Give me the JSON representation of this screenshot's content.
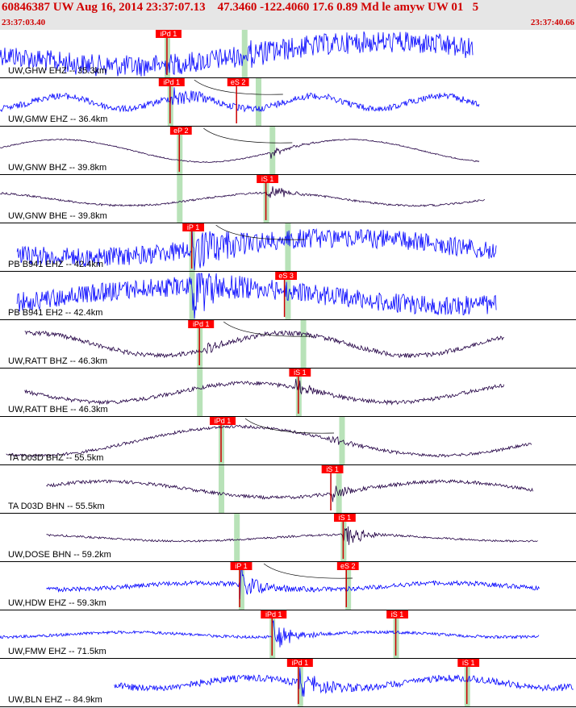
{
  "header": {
    "title": "60846387 UW Aug 16, 2014 23:37:07.13    47.3460 -122.4060 17.6 0.89 Md le amyw UW 01   5",
    "time_start": "23:37:03.40",
    "time_end": "23:37:40.66"
  },
  "colors": {
    "header_bg": "#e6e6e6",
    "header_text": "#d00000",
    "pick_box": "#ff0000",
    "pick_line": "#cc0000",
    "window": "#b8e2b8",
    "wave_ehz": "#0000ff",
    "wave_bh": "#220044",
    "grid": "#000000"
  },
  "time_range": {
    "start": 3.4,
    "end": 40.66
  },
  "traces": [
    {
      "label": "UW,GHW EHZ -- 35.3km",
      "color": "#0000ff",
      "wave_start": 3.4,
      "wave_end": 34.0,
      "amp": 15,
      "noise": 0.9,
      "freq": 0.2,
      "onset": 19.4,
      "arr_amp": 0.3,
      "picks": [
        {
          "label": "iPd 1",
          "t": 14.2
        }
      ],
      "windows": [
        {
          "t": 14.2,
          "w": 0.5
        },
        {
          "t": 19.2,
          "w": 0.5
        }
      ],
      "curve": false
    },
    {
      "label": "UW,GMW EHZ -- 36.4km",
      "color": "#0000ff",
      "wave_start": 3.4,
      "wave_end": 34.4,
      "amp": 8,
      "noise": 0.5,
      "freq": 0.8,
      "onset": 14.4,
      "arr_amp": 2.2,
      "picks": [
        {
          "label": "iPd 1",
          "t": 14.4
        },
        {
          "label": "eS 2",
          "t": 18.7
        }
      ],
      "windows": [
        {
          "t": 14.4,
          "w": 0.5
        },
        {
          "t": 20.1,
          "w": 0.5
        }
      ],
      "curve": true
    },
    {
      "label": "UW,GNW BHZ -- 39.8km",
      "color": "#220044",
      "wave_start": 3.4,
      "wave_end": 34.4,
      "amp": 14,
      "noise": 0.05,
      "freq": 0.35,
      "onset": 20.9,
      "arr_amp": 1.8,
      "picks": [
        {
          "label": "eP 2",
          "t": 15.0
        }
      ],
      "windows": [
        {
          "t": 15.0,
          "w": 0.5
        },
        {
          "t": 21.0,
          "w": 0.5
        }
      ],
      "curve": true
    },
    {
      "label": "UW,GNW BHE -- 39.8km",
      "color": "#220044",
      "wave_start": 3.4,
      "wave_end": 34.8,
      "amp": 8,
      "noise": 0.15,
      "freq": 0.35,
      "onset": 20.6,
      "arr_amp": 2.5,
      "picks": [
        {
          "label": "iS 1",
          "t": 20.6
        }
      ],
      "windows": [
        {
          "t": 15.0,
          "w": 0.5
        },
        {
          "t": 20.6,
          "w": 0.5
        }
      ],
      "curve": false
    },
    {
      "label": "PB B941 EHZ -- 42.4km",
      "color": "#0000ff",
      "wave_start": 4.5,
      "wave_end": 35.5,
      "amp": 12,
      "noise": 1.0,
      "freq": 0.2,
      "onset": 15.8,
      "arr_amp": 2.5,
      "picks": [
        {
          "label": "iP 1",
          "t": 15.8
        }
      ],
      "windows": [
        {
          "t": 15.8,
          "w": 0.5
        },
        {
          "t": 22.0,
          "w": 0.5
        }
      ],
      "curve": true
    },
    {
      "label": "PB B941 EH2 -- 42.4km",
      "color": "#0000ff",
      "wave_start": 4.5,
      "wave_end": 35.5,
      "amp": 12,
      "noise": 1.0,
      "freq": 0.2,
      "onset": 15.8,
      "arr_amp": 2.5,
      "picks": [
        {
          "label": "eS 3",
          "t": 21.8
        }
      ],
      "windows": [
        {
          "t": 15.8,
          "w": 0.5
        },
        {
          "t": 22.0,
          "w": 0.5
        }
      ],
      "curve": false
    },
    {
      "label": "UW,RATT BHZ -- 46.3km",
      "color": "#220044",
      "wave_start": 5.0,
      "wave_end": 36.0,
      "amp": 14,
      "noise": 0.2,
      "freq": 0.4,
      "onset": 16.4,
      "arr_amp": 1.3,
      "picks": [
        {
          "label": "iPd 1",
          "t": 16.3
        }
      ],
      "windows": [
        {
          "t": 16.3,
          "w": 0.5
        },
        {
          "t": 23.0,
          "w": 0.5
        }
      ],
      "curve": true
    },
    {
      "label": "UW,RATT BHE -- 46.3km",
      "color": "#220044",
      "wave_start": 5.0,
      "wave_end": 36.0,
      "amp": 12,
      "noise": 0.2,
      "freq": 0.35,
      "onset": 22.5,
      "arr_amp": 1.6,
      "picks": [
        {
          "label": "iS 1",
          "t": 22.7
        }
      ],
      "windows": [
        {
          "t": 16.3,
          "w": 0.5
        },
        {
          "t": 22.7,
          "w": 0.5
        }
      ],
      "curve": false
    },
    {
      "label": "TA D03D BHZ -- 55.5km",
      "color": "#220044",
      "wave_start": 3.8,
      "wave_end": 37.8,
      "amp": 18,
      "noise": 0.1,
      "freq": 0.25,
      "onset": 24.6,
      "arr_amp": 1.2,
      "picks": [
        {
          "label": "iPd 1",
          "t": 17.7
        }
      ],
      "windows": [
        {
          "t": 17.7,
          "w": 0.5
        },
        {
          "t": 25.5,
          "w": 0.5
        }
      ],
      "curve": true
    },
    {
      "label": "TA D03D BHN -- 55.5km",
      "color": "#220044",
      "wave_start": 6.4,
      "wave_end": 37.9,
      "amp": 10,
      "noise": 0.2,
      "freq": 0.3,
      "onset": 24.9,
      "arr_amp": 2.0,
      "picks": [
        {
          "label": "iS 1",
          "t": 24.8
        }
      ],
      "windows": [
        {
          "t": 17.7,
          "w": 0.5
        },
        {
          "t": 25.3,
          "w": 0.5
        }
      ],
      "curve": false
    },
    {
      "label": "UW,DOSE BHN -- 59.2km",
      "color": "#220044",
      "wave_start": 6.4,
      "wave_end": 38.2,
      "amp": 4,
      "noise": 0.3,
      "freq": 0.3,
      "onset": 25.6,
      "arr_amp": 4.0,
      "picks": [
        {
          "label": "iS 1",
          "t": 25.6
        }
      ],
      "windows": [
        {
          "t": 18.7,
          "w": 0.5
        },
        {
          "t": 25.6,
          "w": 0.5
        }
      ],
      "curve": false
    },
    {
      "label": "UW,HDW EHZ -- 59.3km",
      "color": "#0000ff",
      "wave_start": 6.4,
      "wave_end": 38.3,
      "amp": 4,
      "noise": 0.7,
      "freq": 0.4,
      "onset": 18.9,
      "arr_amp": 4.0,
      "picks": [
        {
          "label": "iP 1",
          "t": 18.9
        },
        {
          "label": "eS 2",
          "t": 25.8
        }
      ],
      "windows": [
        {
          "t": 19.0,
          "w": 0.5
        },
        {
          "t": 25.9,
          "w": 0.5
        }
      ],
      "curve": true
    },
    {
      "label": "UW,FMW EHZ -- 71.5km",
      "color": "#0000ff",
      "wave_start": 3.4,
      "wave_end": 38.3,
      "amp": 3,
      "noise": 0.6,
      "freq": 0.4,
      "onset": 21.0,
      "arr_amp": 4.0,
      "picks": [
        {
          "label": "iPd 1",
          "t": 21.0
        },
        {
          "label": "iS 1",
          "t": 29.0
        }
      ],
      "windows": [
        {
          "t": 21.0,
          "w": 0.5
        },
        {
          "t": 29.0,
          "w": 0.5
        }
      ],
      "curve": false
    },
    {
      "label": "UW,BLN EHZ -- 84.9km",
      "color": "#0000ff",
      "wave_start": 10.8,
      "wave_end": 40.5,
      "amp": 6,
      "noise": 0.7,
      "freq": 0.5,
      "onset": 22.7,
      "arr_amp": 2.5,
      "picks": [
        {
          "label": "iPd 1",
          "t": 22.7
        },
        {
          "label": "iS 1",
          "t": 33.6
        }
      ],
      "windows": [
        {
          "t": 22.8,
          "w": 0.5
        },
        {
          "t": 33.6,
          "w": 0.5
        }
      ],
      "curve": false
    }
  ]
}
